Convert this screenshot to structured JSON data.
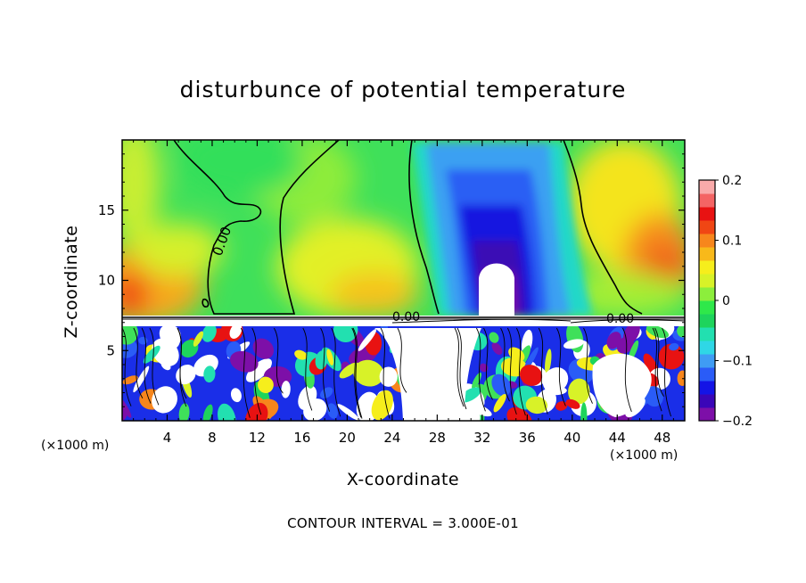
{
  "chart_data": {
    "type": "heatmap",
    "title": "disturbunce of potential temperature",
    "xlabel": "X-coordinate",
    "ylabel": "Z-coordinate",
    "x_unit": "(×1000 m)",
    "x_ticks": [
      4,
      8,
      12,
      16,
      20,
      24,
      28,
      32,
      36,
      40,
      44,
      48
    ],
    "y_ticks": [
      5,
      10,
      15
    ],
    "xlim": [
      0,
      50
    ],
    "ylim": [
      0,
      20
    ],
    "colorbar": {
      "ticks": [
        "0.2",
        "0.1",
        "0",
        "−0.1",
        "−0.2"
      ],
      "tick_values": [
        0.2,
        0.1,
        0,
        -0.1,
        -0.2
      ],
      "range": [
        -0.2,
        0.2
      ]
    },
    "contour_labels": [
      "0.00",
      "0.00",
      "0.00"
    ],
    "contour_interval_text": "CONTOUR INTERVAL = 3.000E-01"
  },
  "colors": {
    "colorbar_levels": [
      "#7d0fa8",
      "#3a06b8",
      "#1414e6",
      "#2a5cf7",
      "#3f9cf4",
      "#2fd7e6",
      "#22e0b0",
      "#1ed45c",
      "#2fe84a",
      "#8cee3c",
      "#d8f228",
      "#f6ee1c",
      "#f8b91a",
      "#f7861c",
      "#f04614",
      "#e81212",
      "#f46464",
      "#f9aaaa"
    ]
  }
}
